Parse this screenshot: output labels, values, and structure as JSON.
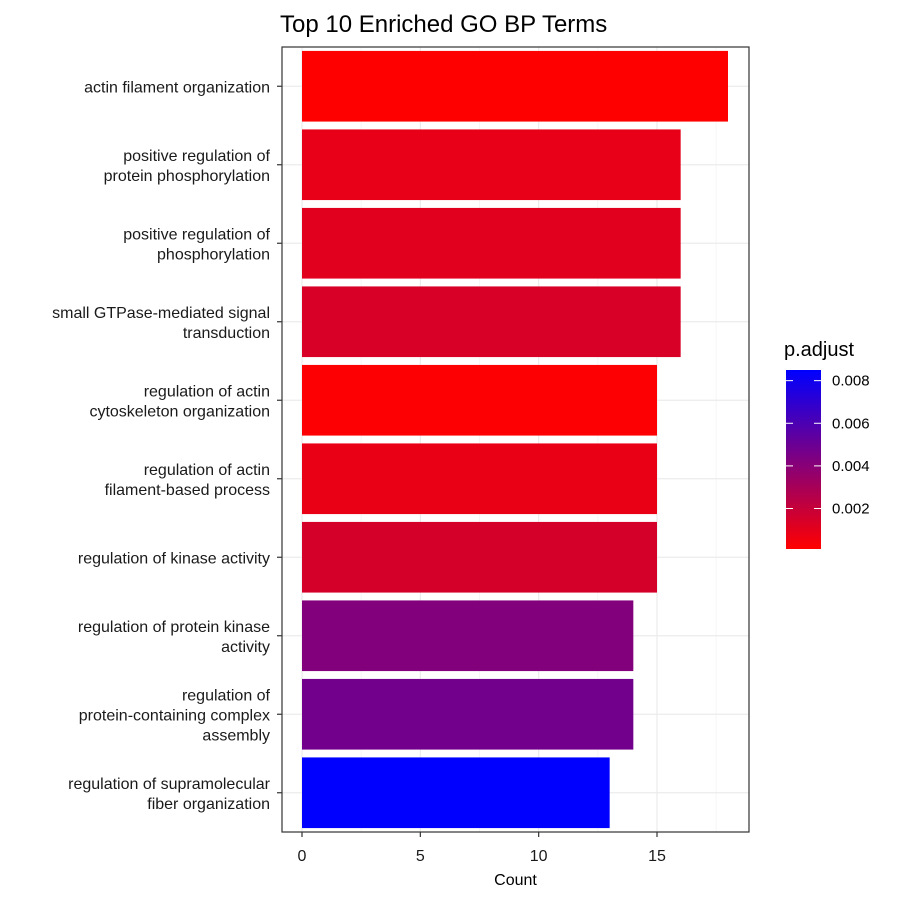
{
  "chart_data": {
    "type": "bar",
    "orientation": "horizontal",
    "title": "Top 10 Enriched GO BP Terms",
    "xlabel": "Count",
    "ylabel": "",
    "xlim": [
      0,
      18.9
    ],
    "xticks": [
      0,
      5,
      10,
      15
    ],
    "grid": true,
    "color_scale": {
      "name": "p.adjust",
      "low_color": "#ff0000",
      "high_color": "#0000ff",
      "range": [
        0.0001,
        0.0085
      ],
      "ticks": [
        0.002,
        0.004,
        0.006,
        0.008
      ],
      "tick_labels": [
        "0.002",
        "0.004",
        "0.006",
        "0.008"
      ],
      "legend_position": "right"
    },
    "categories": [
      [
        "actin filament organization"
      ],
      [
        "positive regulation of",
        "protein phosphorylation"
      ],
      [
        "positive regulation of",
        "phosphorylation"
      ],
      [
        "small GTPase-mediated signal",
        "transduction"
      ],
      [
        "regulation of actin",
        "cytoskeleton organization"
      ],
      [
        "regulation of actin",
        "filament-based process"
      ],
      [
        "regulation of kinase activity"
      ],
      [
        "regulation of protein kinase",
        "activity"
      ],
      [
        "regulation of",
        "protein-containing complex",
        "assembly"
      ],
      [
        "regulation of supramolecular",
        "fiber organization"
      ]
    ],
    "values": [
      18,
      16,
      16,
      16,
      15,
      15,
      15,
      14,
      14,
      13
    ],
    "p_adjust": [
      0.0001,
      0.0009,
      0.0011,
      0.0014,
      0.0002,
      0.0008,
      0.0015,
      0.0042,
      0.0047,
      0.0085
    ]
  }
}
